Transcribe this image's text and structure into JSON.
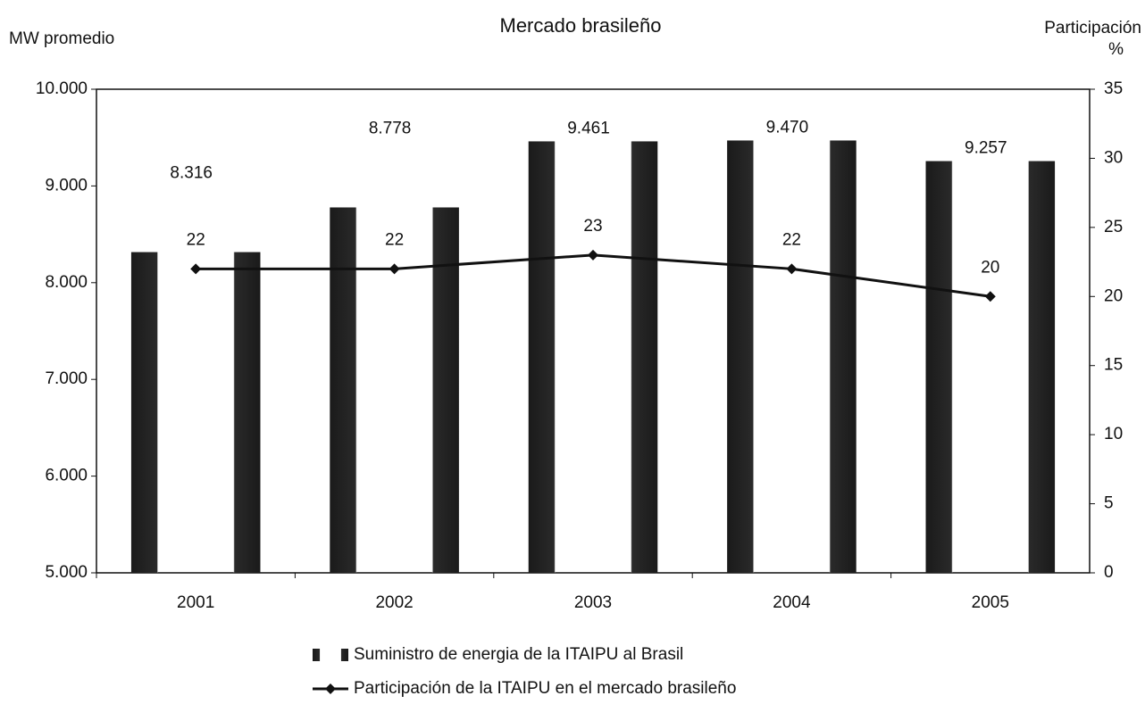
{
  "chart_data": {
    "type": "bar_line",
    "title": "Mercado brasileño",
    "y_label": "MW promedio",
    "y2_label": "Participación",
    "y2_unit": "%",
    "categories": [
      "2001",
      "2002",
      "2003",
      "2004",
      "2005"
    ],
    "series": [
      {
        "name": "Suministro de energia de la ITAIPU al Brasil",
        "type": "bar",
        "color": "#1a1a1a",
        "values": [
          8316,
          8778,
          9461,
          9470,
          9257
        ],
        "value_labels": [
          "8.316",
          "8.778",
          "9.461",
          "9.470",
          "9.257"
        ]
      },
      {
        "name": "Participación de la ITAIPU en el mercado brasileño",
        "type": "line",
        "axis": "y2",
        "color": "#111111",
        "values": [
          22,
          22,
          23,
          22,
          20
        ]
      }
    ],
    "ylim": [
      5000,
      10000
    ],
    "yticks": [
      {
        "value": 5000,
        "label": "5.000"
      },
      {
        "value": 6000,
        "label": "6.000"
      },
      {
        "value": 7000,
        "label": "7.000"
      },
      {
        "value": 8000,
        "label": "8.000"
      },
      {
        "value": 9000,
        "label": "9.000"
      },
      {
        "value": 10000,
        "label": "10.000"
      }
    ],
    "y2lim": [
      0,
      35
    ],
    "y2ticks": [
      0,
      5,
      10,
      15,
      20,
      25,
      30,
      35
    ],
    "legend": "bottom"
  }
}
